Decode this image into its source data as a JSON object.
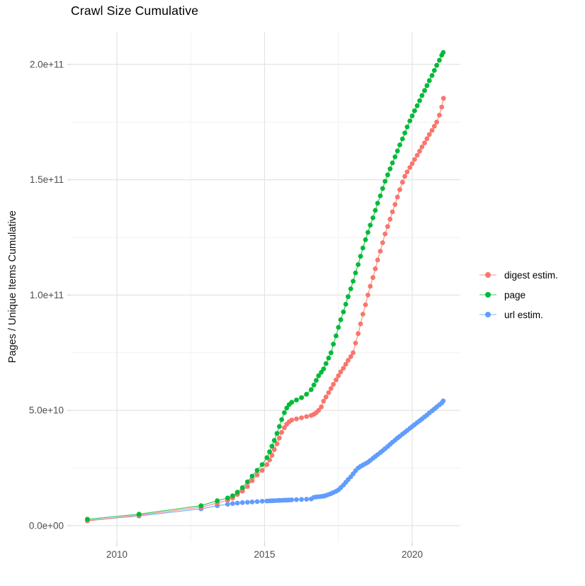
{
  "page": {
    "background": "#ffffff"
  },
  "chart_data": {
    "type": "line",
    "style": "line+markers",
    "title": "Crawl Size Cumulative",
    "xlabel": "",
    "ylabel": "Pages / Unique Items Cumulative",
    "units": "values in 1e9 (billions of pages / unique items)",
    "xlim": [
      2008.44,
      2021.63
    ],
    "ylim": [
      -7.1,
      214.1
    ],
    "grid": true,
    "legend_position": "right",
    "x_axis": {
      "ticks": [
        {
          "v": 2010,
          "label": "2010"
        },
        {
          "v": 2015,
          "label": "2015"
        },
        {
          "v": 2020,
          "label": "2020"
        }
      ],
      "minor": [
        2012.5,
        2017.5
      ]
    },
    "y_axis": {
      "ticks": [
        {
          "v": 0,
          "label": "0.0e+00"
        },
        {
          "v": 50,
          "label": "5.0e+10"
        },
        {
          "v": 100,
          "label": "1.0e+11"
        },
        {
          "v": 150,
          "label": "1.5e+11"
        },
        {
          "v": 200,
          "label": "2.0e+11"
        }
      ],
      "minor": [
        25,
        75,
        125,
        175
      ]
    },
    "colors": {
      "grid_major": "#e4e4e4",
      "grid_minor": "#f1f1f1",
      "axis_text": "#4d4d4d",
      "tick": "#d4d4d4",
      "title": "#000000"
    },
    "draw_order": [
      "url estim.",
      "digest estim.",
      "page"
    ],
    "series": [
      {
        "name": "digest estim.",
        "color": "#F8766D",
        "points": [
          [
            2009.0,
            2.1
          ],
          [
            2010.75,
            4.5
          ],
          [
            2012.85,
            8.0
          ],
          [
            2013.4,
            9.8
          ],
          [
            2013.75,
            11.0
          ],
          [
            2013.92,
            12.0
          ],
          [
            2014.08,
            13.5
          ],
          [
            2014.25,
            15.0
          ],
          [
            2014.42,
            17.0
          ],
          [
            2014.58,
            19.5
          ],
          [
            2014.75,
            22.0
          ],
          [
            2014.92,
            24.0
          ],
          [
            2015.08,
            26.5
          ],
          [
            2015.17,
            28.5
          ],
          [
            2015.25,
            30.5
          ],
          [
            2015.33,
            33
          ],
          [
            2015.42,
            35.5
          ],
          [
            2015.5,
            38
          ],
          [
            2015.58,
            40.5
          ],
          [
            2015.67,
            42.5
          ],
          [
            2015.75,
            44
          ],
          [
            2015.83,
            45
          ],
          [
            2015.92,
            45.8
          ],
          [
            2016.08,
            46.3
          ],
          [
            2016.25,
            46.8
          ],
          [
            2016.42,
            47.3
          ],
          [
            2016.58,
            47.8
          ],
          [
            2016.67,
            48.3
          ],
          [
            2016.75,
            49
          ],
          [
            2016.83,
            50
          ],
          [
            2016.92,
            51.5
          ],
          [
            2017.0,
            54
          ],
          [
            2017.08,
            55.8
          ],
          [
            2017.17,
            57.7
          ],
          [
            2017.25,
            59.5
          ],
          [
            2017.33,
            61.3
          ],
          [
            2017.42,
            63.2
          ],
          [
            2017.5,
            65
          ],
          [
            2017.58,
            66.7
          ],
          [
            2017.67,
            68.3
          ],
          [
            2017.75,
            70
          ],
          [
            2017.83,
            71.7
          ],
          [
            2017.92,
            73.3
          ],
          [
            2018.0,
            75
          ],
          [
            2018.08,
            79.2
          ],
          [
            2018.17,
            83.3
          ],
          [
            2018.25,
            87.5
          ],
          [
            2018.33,
            91.7
          ],
          [
            2018.42,
            95.8
          ],
          [
            2018.5,
            100
          ],
          [
            2018.58,
            103.8
          ],
          [
            2018.67,
            107.6
          ],
          [
            2018.75,
            111.4
          ],
          [
            2018.83,
            115.2
          ],
          [
            2018.92,
            119
          ],
          [
            2019.0,
            122.7
          ],
          [
            2019.08,
            126.5
          ],
          [
            2019.17,
            129.7
          ],
          [
            2019.25,
            132.9
          ],
          [
            2019.33,
            136.1
          ],
          [
            2019.42,
            139.3
          ],
          [
            2019.5,
            142.5
          ],
          [
            2019.58,
            145.7
          ],
          [
            2019.67,
            148.9
          ],
          [
            2019.75,
            151.5
          ],
          [
            2019.83,
            153.4
          ],
          [
            2019.92,
            155.3
          ],
          [
            2020.0,
            157
          ],
          [
            2020.08,
            158.8
          ],
          [
            2020.17,
            160.6
          ],
          [
            2020.25,
            162.4
          ],
          [
            2020.33,
            164.2
          ],
          [
            2020.42,
            166
          ],
          [
            2020.5,
            167.8
          ],
          [
            2020.58,
            169.6
          ],
          [
            2020.67,
            171.4
          ],
          [
            2020.75,
            173.2
          ],
          [
            2020.83,
            175
          ],
          [
            2020.92,
            178
          ],
          [
            2021.0,
            181.5
          ],
          [
            2021.06,
            185.3
          ]
        ]
      },
      {
        "name": "page",
        "color": "#00BA38",
        "points": [
          [
            2009.0,
            2.8
          ],
          [
            2010.75,
            5.0
          ],
          [
            2012.85,
            8.7
          ],
          [
            2013.4,
            10.8
          ],
          [
            2013.75,
            12.0
          ],
          [
            2013.92,
            13.0
          ],
          [
            2014.08,
            14.5
          ],
          [
            2014.25,
            16.5
          ],
          [
            2014.42,
            19.0
          ],
          [
            2014.58,
            21.5
          ],
          [
            2014.75,
            24.0
          ],
          [
            2014.92,
            26.5
          ],
          [
            2015.08,
            29.5
          ],
          [
            2015.17,
            32
          ],
          [
            2015.25,
            34.5
          ],
          [
            2015.33,
            37
          ],
          [
            2015.42,
            40
          ],
          [
            2015.5,
            43
          ],
          [
            2015.58,
            46
          ],
          [
            2015.67,
            49
          ],
          [
            2015.75,
            51
          ],
          [
            2015.83,
            52.5
          ],
          [
            2015.92,
            53.5
          ],
          [
            2016.08,
            54.5
          ],
          [
            2016.25,
            55.5
          ],
          [
            2016.42,
            57
          ],
          [
            2016.58,
            59
          ],
          [
            2016.67,
            61
          ],
          [
            2016.75,
            63
          ],
          [
            2016.83,
            65
          ],
          [
            2016.92,
            66.5
          ],
          [
            2017.0,
            68
          ],
          [
            2017.08,
            70.3
          ],
          [
            2017.17,
            72.7
          ],
          [
            2017.25,
            75
          ],
          [
            2017.33,
            78.7
          ],
          [
            2017.42,
            82.3
          ],
          [
            2017.5,
            86
          ],
          [
            2017.58,
            89.3
          ],
          [
            2017.67,
            92.7
          ],
          [
            2017.75,
            96
          ],
          [
            2017.83,
            99.3
          ],
          [
            2017.92,
            102.7
          ],
          [
            2018.0,
            106
          ],
          [
            2018.08,
            109.6
          ],
          [
            2018.17,
            113.2
          ],
          [
            2018.25,
            116.8
          ],
          [
            2018.33,
            120.4
          ],
          [
            2018.42,
            124
          ],
          [
            2018.5,
            127.2
          ],
          [
            2018.58,
            130.3
          ],
          [
            2018.67,
            133.5
          ],
          [
            2018.75,
            136.7
          ],
          [
            2018.83,
            139.8
          ],
          [
            2018.92,
            143
          ],
          [
            2019.0,
            146.2
          ],
          [
            2019.08,
            149.3
          ],
          [
            2019.17,
            152.1
          ],
          [
            2019.25,
            154.7
          ],
          [
            2019.33,
            157.3
          ],
          [
            2019.42,
            159.9
          ],
          [
            2019.5,
            162.5
          ],
          [
            2019.58,
            165.1
          ],
          [
            2019.67,
            167.7
          ],
          [
            2019.75,
            170.3
          ],
          [
            2019.83,
            172.9
          ],
          [
            2019.92,
            175.5
          ],
          [
            2020.0,
            177.7
          ],
          [
            2020.08,
            179.9
          ],
          [
            2020.17,
            182.1
          ],
          [
            2020.25,
            184.3
          ],
          [
            2020.33,
            186.5
          ],
          [
            2020.42,
            188.7
          ],
          [
            2020.5,
            190.8
          ],
          [
            2020.58,
            193
          ],
          [
            2020.67,
            195.2
          ],
          [
            2020.75,
            197.4
          ],
          [
            2020.83,
            199.6
          ],
          [
            2020.92,
            201.8
          ],
          [
            2021.0,
            204
          ],
          [
            2021.05,
            205.2
          ]
        ]
      },
      {
        "name": "url estim.",
        "color": "#619CFF",
        "points": [
          [
            2009.0,
            2.3
          ],
          [
            2010.75,
            4.2
          ],
          [
            2012.85,
            7.3
          ],
          [
            2013.4,
            8.7
          ],
          [
            2013.75,
            9.3
          ],
          [
            2013.92,
            9.6
          ],
          [
            2014.08,
            9.8
          ],
          [
            2014.25,
            10.0
          ],
          [
            2014.42,
            10.15
          ],
          [
            2014.58,
            10.3
          ],
          [
            2014.75,
            10.45
          ],
          [
            2014.92,
            10.6
          ],
          [
            2015.08,
            10.7
          ],
          [
            2015.17,
            10.75
          ],
          [
            2015.25,
            10.8
          ],
          [
            2015.33,
            10.85
          ],
          [
            2015.42,
            10.9
          ],
          [
            2015.5,
            10.95
          ],
          [
            2015.58,
            11.0
          ],
          [
            2015.67,
            11.05
          ],
          [
            2015.75,
            11.1
          ],
          [
            2015.83,
            11.15
          ],
          [
            2015.92,
            11.2
          ],
          [
            2016.08,
            11.3
          ],
          [
            2016.25,
            11.4
          ],
          [
            2016.42,
            11.5
          ],
          [
            2016.58,
            11.6
          ],
          [
            2016.67,
            12.3
          ],
          [
            2016.75,
            12.45
          ],
          [
            2016.83,
            12.55
          ],
          [
            2016.92,
            12.7
          ],
          [
            2017.0,
            12.8
          ],
          [
            2017.08,
            13.1
          ],
          [
            2017.17,
            13.5
          ],
          [
            2017.25,
            13.9
          ],
          [
            2017.33,
            14.4
          ],
          [
            2017.42,
            14.9
          ],
          [
            2017.5,
            15.5
          ],
          [
            2017.58,
            16.5
          ],
          [
            2017.67,
            17.6
          ],
          [
            2017.75,
            18.8
          ],
          [
            2017.83,
            20
          ],
          [
            2017.92,
            21.2
          ],
          [
            2018.0,
            22.5
          ],
          [
            2018.08,
            23.8
          ],
          [
            2018.17,
            25
          ],
          [
            2018.25,
            25.7
          ],
          [
            2018.33,
            26.3
          ],
          [
            2018.42,
            26.9
          ],
          [
            2018.5,
            27.5
          ],
          [
            2018.58,
            28.3
          ],
          [
            2018.67,
            29.2
          ],
          [
            2018.75,
            30
          ],
          [
            2018.83,
            30.8
          ],
          [
            2018.92,
            31.7
          ],
          [
            2019.0,
            32.5
          ],
          [
            2019.08,
            33.4
          ],
          [
            2019.17,
            34.3
          ],
          [
            2019.25,
            35.3
          ],
          [
            2019.33,
            36.2
          ],
          [
            2019.42,
            37.1
          ],
          [
            2019.5,
            38
          ],
          [
            2019.58,
            38.8
          ],
          [
            2019.67,
            39.7
          ],
          [
            2019.75,
            40.5
          ],
          [
            2019.83,
            41.3
          ],
          [
            2019.92,
            42.2
          ],
          [
            2020.0,
            43
          ],
          [
            2020.08,
            43.8
          ],
          [
            2020.17,
            44.7
          ],
          [
            2020.25,
            45.5
          ],
          [
            2020.33,
            46.3
          ],
          [
            2020.42,
            47.2
          ],
          [
            2020.5,
            48
          ],
          [
            2020.58,
            48.9
          ],
          [
            2020.67,
            49.8
          ],
          [
            2020.75,
            50.6
          ],
          [
            2020.83,
            51.5
          ],
          [
            2020.92,
            52.4
          ],
          [
            2021.0,
            53.2
          ],
          [
            2021.05,
            54.1
          ]
        ]
      }
    ]
  }
}
